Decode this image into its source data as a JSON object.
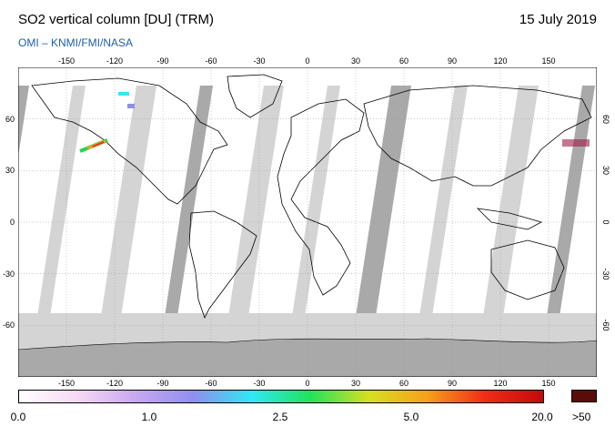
{
  "header": {
    "title": "SO2 vertical column [DU] (TRM)",
    "date": "15 July 2019",
    "credit": "OMI  –  KNMI/FMI/NASA"
  },
  "axes": {
    "lon_ticks": [
      "-150",
      "-120",
      "-90",
      "-60",
      "-30",
      "0",
      "30",
      "60",
      "90",
      "120",
      "150"
    ],
    "lat_ticks_left": [
      "60",
      "30",
      "0",
      "-30",
      "-60"
    ],
    "lat_ticks_right": [
      "60",
      "30",
      "0",
      "-30",
      "-60"
    ]
  },
  "colorbar": {
    "labels": [
      "0.0",
      "1.0",
      "2.5",
      "5.0",
      "20.0"
    ],
    "max_label": ">50",
    "max_color": "#5a0d08",
    "stops": [
      "#ffffff",
      "#f6d9f3",
      "#c8a8ef",
      "#8f8ff0",
      "#30e8f2",
      "#22e25c",
      "#d6e020",
      "#f6a11b",
      "#ef2d16",
      "#c20a0a"
    ]
  },
  "map_colors": {
    "land_fill": "#ffffff",
    "missing_data": "#d4d4d4",
    "gap_swaths": "#a9a9a9",
    "coastline": "#000000"
  },
  "plumes": [
    {
      "name": "raikoke-plume",
      "colors": [
        "#ff2a1a",
        "#f5a017",
        "#23d64f"
      ]
    }
  ]
}
